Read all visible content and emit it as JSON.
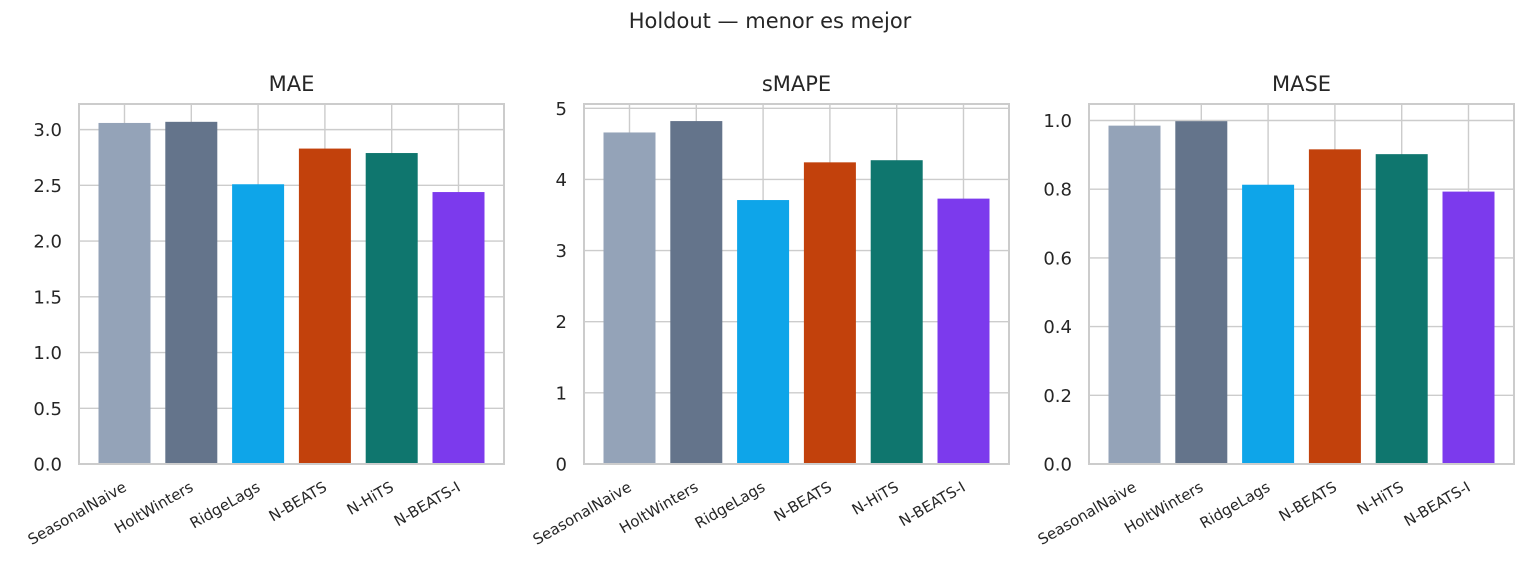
{
  "figure": {
    "title": "Holdout — menor es mejor"
  },
  "chart_data": [
    {
      "type": "bar",
      "title": "MAE",
      "xlabel": "",
      "ylabel": "",
      "categories": [
        "SeasonalNaive",
        "HoltWinters",
        "RidgeLags",
        "N-BEATS",
        "N-HiTS",
        "N-BEATS-I"
      ],
      "values": [
        3.06,
        3.07,
        2.51,
        2.83,
        2.79,
        2.44
      ],
      "colors": [
        "#94a3b8",
        "#64748b",
        "#0ea5e9",
        "#c2410c",
        "#0f766e",
        "#7c3aed"
      ],
      "ylim": [
        0,
        3.23
      ],
      "yticks": [
        0.0,
        0.5,
        1.0,
        1.5,
        2.0,
        2.5,
        3.0
      ],
      "ytick_labels": [
        "0.0",
        "0.5",
        "1.0",
        "1.5",
        "2.0",
        "2.5",
        "3.0"
      ],
      "grid": true
    },
    {
      "type": "bar",
      "title": "sMAPE",
      "xlabel": "",
      "ylabel": "",
      "categories": [
        "SeasonalNaive",
        "HoltWinters",
        "RidgeLags",
        "N-BEATS",
        "N-HiTS",
        "N-BEATS-I"
      ],
      "values": [
        4.66,
        4.82,
        3.71,
        4.24,
        4.27,
        3.73
      ],
      "colors": [
        "#94a3b8",
        "#64748b",
        "#0ea5e9",
        "#c2410c",
        "#0f766e",
        "#7c3aed"
      ],
      "ylim": [
        0,
        5.06
      ],
      "yticks": [
        0,
        1,
        2,
        3,
        4,
        5
      ],
      "ytick_labels": [
        "0",
        "1",
        "2",
        "3",
        "4",
        "5"
      ],
      "grid": true
    },
    {
      "type": "bar",
      "title": "MASE",
      "xlabel": "",
      "ylabel": "",
      "categories": [
        "SeasonalNaive",
        "HoltWinters",
        "RidgeLags",
        "N-BEATS",
        "N-HiTS",
        "N-BEATS-I"
      ],
      "values": [
        0.985,
        0.998,
        0.813,
        0.916,
        0.902,
        0.793
      ],
      "colors": [
        "#94a3b8",
        "#64748b",
        "#0ea5e9",
        "#c2410c",
        "#0f766e",
        "#7c3aed"
      ],
      "ylim": [
        0,
        1.048
      ],
      "yticks": [
        0.0,
        0.2,
        0.4,
        0.6,
        0.8,
        1.0
      ],
      "ytick_labels": [
        "0.0",
        "0.2",
        "0.4",
        "0.6",
        "0.8",
        "1.0"
      ],
      "grid": true
    }
  ]
}
